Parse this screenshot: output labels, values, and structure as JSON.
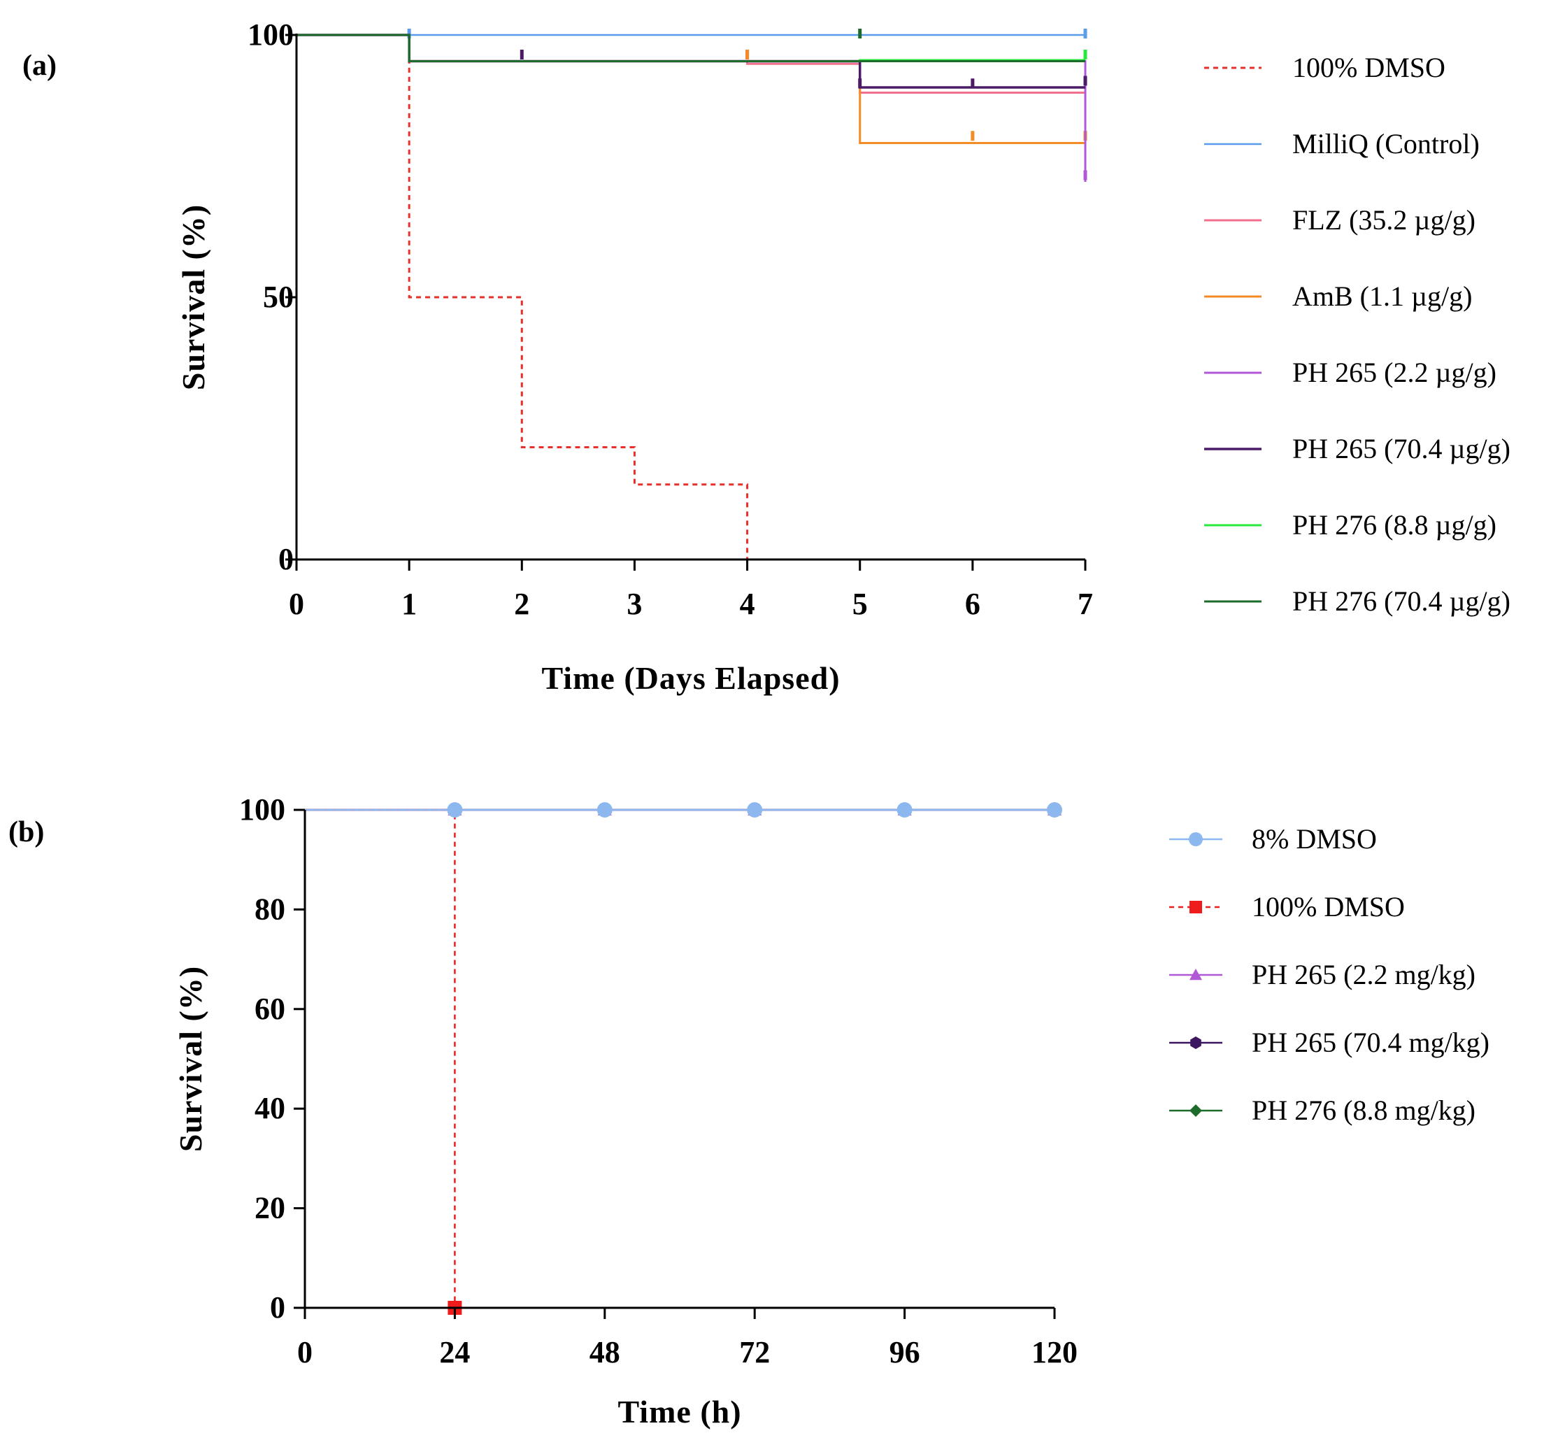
{
  "chart_data": [
    {
      "type": "line",
      "panel_label": "(a)",
      "title": "",
      "xlabel": "Time (Days Elapsed)",
      "ylabel": "Survival (%)",
      "xlim": [
        0,
        7
      ],
      "ylim": [
        0,
        100
      ],
      "xticks": [
        "0",
        "1",
        "2",
        "3",
        "4",
        "5",
        "6",
        "7"
      ],
      "yticks": [
        "0",
        "50",
        "100"
      ],
      "grid": false,
      "legend_position": "right",
      "step": true,
      "series": [
        {
          "name": "100% DMSO",
          "color": "#e8302a",
          "dashed": true,
          "width": 3,
          "x": [
            0,
            1,
            1,
            2,
            2,
            3,
            3,
            4,
            4
          ],
          "y": [
            100,
            100,
            50,
            50,
            21.4,
            21.4,
            14.3,
            14.3,
            0
          ],
          "censor": []
        },
        {
          "name": "MilliQ (Control)",
          "color": "#5b9bec",
          "dashed": false,
          "width": 2.5,
          "x": [
            0,
            7
          ],
          "y": [
            100,
            100
          ],
          "censor": [
            [
              1,
              100
            ],
            [
              7,
              100
            ]
          ]
        },
        {
          "name": "FLZ (35.2 µg/g)",
          "color": "#f0708e",
          "dashed": false,
          "width": 3,
          "x": [
            0,
            1,
            1,
            4,
            4,
            5,
            5,
            7,
            7
          ],
          "y": [
            100,
            100,
            95,
            95,
            94.5,
            94.5,
            89,
            89,
            91
          ],
          "censor": [
            [
              4,
              96
            ],
            [
              7,
              91
            ]
          ]
        },
        {
          "name": "AmB (1.1 µg/g)",
          "color": "#f48b25",
          "dashed": false,
          "width": 3,
          "x": [
            0,
            1,
            1,
            4,
            4,
            5,
            5,
            7
          ],
          "y": [
            100,
            100,
            95,
            95,
            95,
            95,
            79.4,
            79.4
          ],
          "censor": [
            [
              4,
              96
            ],
            [
              6,
              80.5
            ],
            [
              7,
              80.5
            ]
          ]
        },
        {
          "name": "PH 265 (2.2 µg/g)",
          "color": "#b058d6",
          "dashed": false,
          "width": 3,
          "x": [
            0,
            1,
            1,
            6,
            6,
            7,
            7
          ],
          "y": [
            100,
            100,
            95,
            95,
            95,
            95,
            72
          ],
          "censor": [
            [
              7,
              73
            ]
          ]
        },
        {
          "name": "PH 265 (70.4 µg/g)",
          "color": "#4b1b67",
          "dashed": false,
          "width": 3.5,
          "x": [
            0,
            1,
            1,
            5,
            5,
            7
          ],
          "y": [
            100,
            100,
            95,
            95,
            90,
            90
          ],
          "censor": [
            [
              2,
              96
            ],
            [
              5,
              90.5
            ],
            [
              6,
              90.5
            ],
            [
              7,
              91
            ]
          ]
        },
        {
          "name": "PH 276 (8.8 µg/g)",
          "color": "#29e83c",
          "dashed": false,
          "width": 3,
          "x": [
            0,
            1,
            1,
            5,
            5,
            7
          ],
          "y": [
            100,
            100,
            95,
            95,
            95.2,
            95.2
          ],
          "censor": [
            [
              7,
              96
            ]
          ]
        },
        {
          "name": "PH 276 (70.4 µg/g)",
          "color": "#1d6b2a",
          "dashed": false,
          "width": 3,
          "x": [
            0,
            1,
            1,
            5,
            5,
            7
          ],
          "y": [
            100,
            100,
            95,
            95,
            95,
            95
          ],
          "censor": [
            [
              5,
              100
            ]
          ]
        }
      ]
    },
    {
      "type": "line",
      "panel_label": "(b)",
      "title": "",
      "xlabel": "Time (h)",
      "ylabel": "Survival (%)",
      "xlim": [
        0,
        120
      ],
      "ylim": [
        0,
        100
      ],
      "xticks": [
        "0",
        "24",
        "48",
        "72",
        "96",
        "120"
      ],
      "yticks": [
        "0",
        "20",
        "40",
        "60",
        "80",
        "100"
      ],
      "grid": false,
      "legend_position": "right",
      "series": [
        {
          "name": "8% DMSO",
          "color": "#8cb8ef",
          "marker": "circle",
          "dashed": false,
          "x": [
            0,
            24,
            48,
            72,
            96,
            120
          ],
          "y": [
            100,
            100,
            100,
            100,
            100,
            100
          ]
        },
        {
          "name": "100% DMSO",
          "color": "#ee1c1c",
          "marker": "square",
          "dashed": true,
          "x": [
            0,
            24,
            24
          ],
          "y": [
            100,
            100,
            0
          ]
        },
        {
          "name": "PH 265 (2.2 mg/kg)",
          "color": "#b058d6",
          "marker": "triangle",
          "dashed": false,
          "x": [
            0,
            24,
            48,
            72,
            96,
            120
          ],
          "y": [
            100,
            100,
            100,
            100,
            100,
            100
          ]
        },
        {
          "name": "PH 265 (70.4 mg/kg)",
          "color": "#3d1660",
          "marker": "hexagon",
          "dashed": false,
          "x": [
            0,
            24,
            48,
            72,
            96,
            120
          ],
          "y": [
            100,
            100,
            100,
            100,
            100,
            100
          ]
        },
        {
          "name": "PH 276 (8.8 mg/kg)",
          "color": "#1d6b2a",
          "marker": "diamond",
          "dashed": false,
          "x": [
            0,
            24,
            48,
            72,
            96,
            120
          ],
          "y": [
            100,
            100,
            100,
            100,
            100,
            100
          ]
        }
      ]
    }
  ]
}
